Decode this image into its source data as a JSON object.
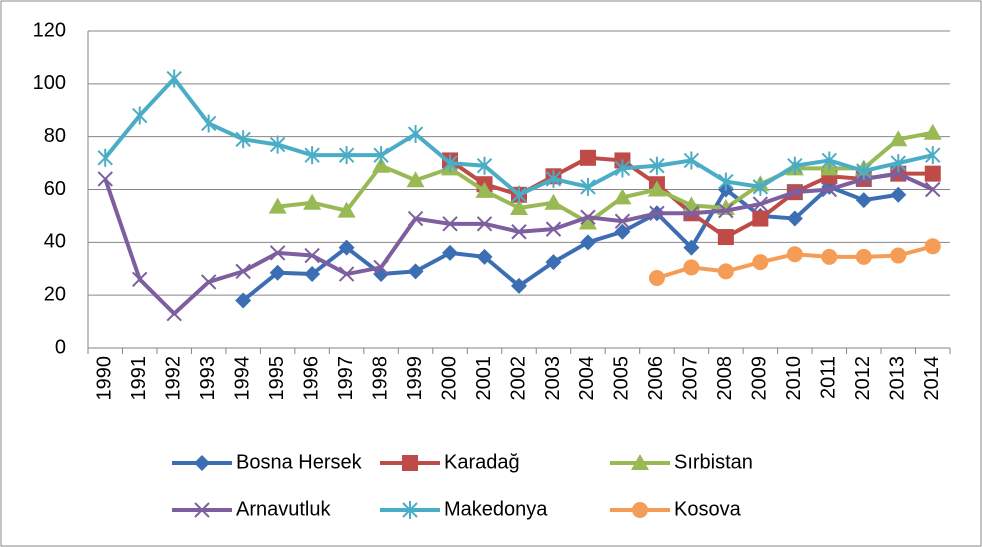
{
  "chart_data": {
    "type": "line",
    "categories": [
      "1990",
      "1991",
      "1992",
      "1993",
      "1994",
      "1995",
      "1996",
      "1997",
      "1998",
      "1999",
      "2000",
      "2001",
      "2002",
      "2003",
      "2004",
      "2005",
      "2006",
      "2007",
      "2008",
      "2009",
      "2010",
      "2011",
      "2012",
      "2013",
      "2014"
    ],
    "ylim": [
      0,
      120
    ],
    "yticks": [
      0,
      20,
      40,
      60,
      80,
      100,
      120
    ],
    "grid": true,
    "legend": "bottom",
    "series": [
      {
        "name": "Bosna Hersek",
        "color": "#3c6eb4",
        "marker": "diamond",
        "values": [
          null,
          null,
          null,
          null,
          18,
          28.5,
          28,
          38,
          28,
          29,
          36,
          34.5,
          23.5,
          32.5,
          40,
          44,
          51,
          38,
          60,
          50,
          49,
          61,
          56,
          58,
          null
        ]
      },
      {
        "name": "Karadağ",
        "color": "#be4b48",
        "marker": "square",
        "values": [
          null,
          null,
          null,
          null,
          null,
          null,
          null,
          null,
          null,
          null,
          71,
          62,
          58,
          65,
          72,
          71,
          62,
          51,
          42,
          49,
          59,
          65,
          64,
          66,
          66
        ]
      },
      {
        "name": "Sırbistan",
        "color": "#98b954",
        "marker": "triangle",
        "values": [
          null,
          null,
          null,
          null,
          null,
          53.5,
          55,
          52,
          69,
          63.5,
          68,
          59.5,
          53,
          55,
          47.5,
          57,
          60,
          54,
          53,
          62,
          68,
          68,
          68,
          79,
          81.5
        ]
      },
      {
        "name": "Arnavutluk",
        "color": "#7d5fa0",
        "marker": "x",
        "values": [
          64,
          26,
          13,
          25,
          29,
          36,
          35,
          28,
          30.5,
          49,
          47,
          47,
          44,
          45,
          49.5,
          48,
          51,
          51,
          52,
          54.5,
          59,
          60,
          64,
          66,
          60
        ]
      },
      {
        "name": "Makedonya",
        "color": "#4aacc5",
        "marker": "star",
        "values": [
          72,
          88,
          102,
          85,
          79,
          77,
          73,
          73,
          73,
          81,
          70,
          69,
          58,
          64,
          61,
          68,
          69,
          71,
          63,
          61,
          69,
          71,
          67,
          70,
          73
        ]
      },
      {
        "name": "Kosova",
        "color": "#f59d56",
        "marker": "circle",
        "values": [
          null,
          null,
          null,
          null,
          null,
          null,
          null,
          null,
          null,
          null,
          null,
          null,
          null,
          null,
          null,
          null,
          26.5,
          30.5,
          29,
          32.5,
          35.5,
          34.5,
          34.5,
          35,
          38.5
        ]
      }
    ]
  }
}
